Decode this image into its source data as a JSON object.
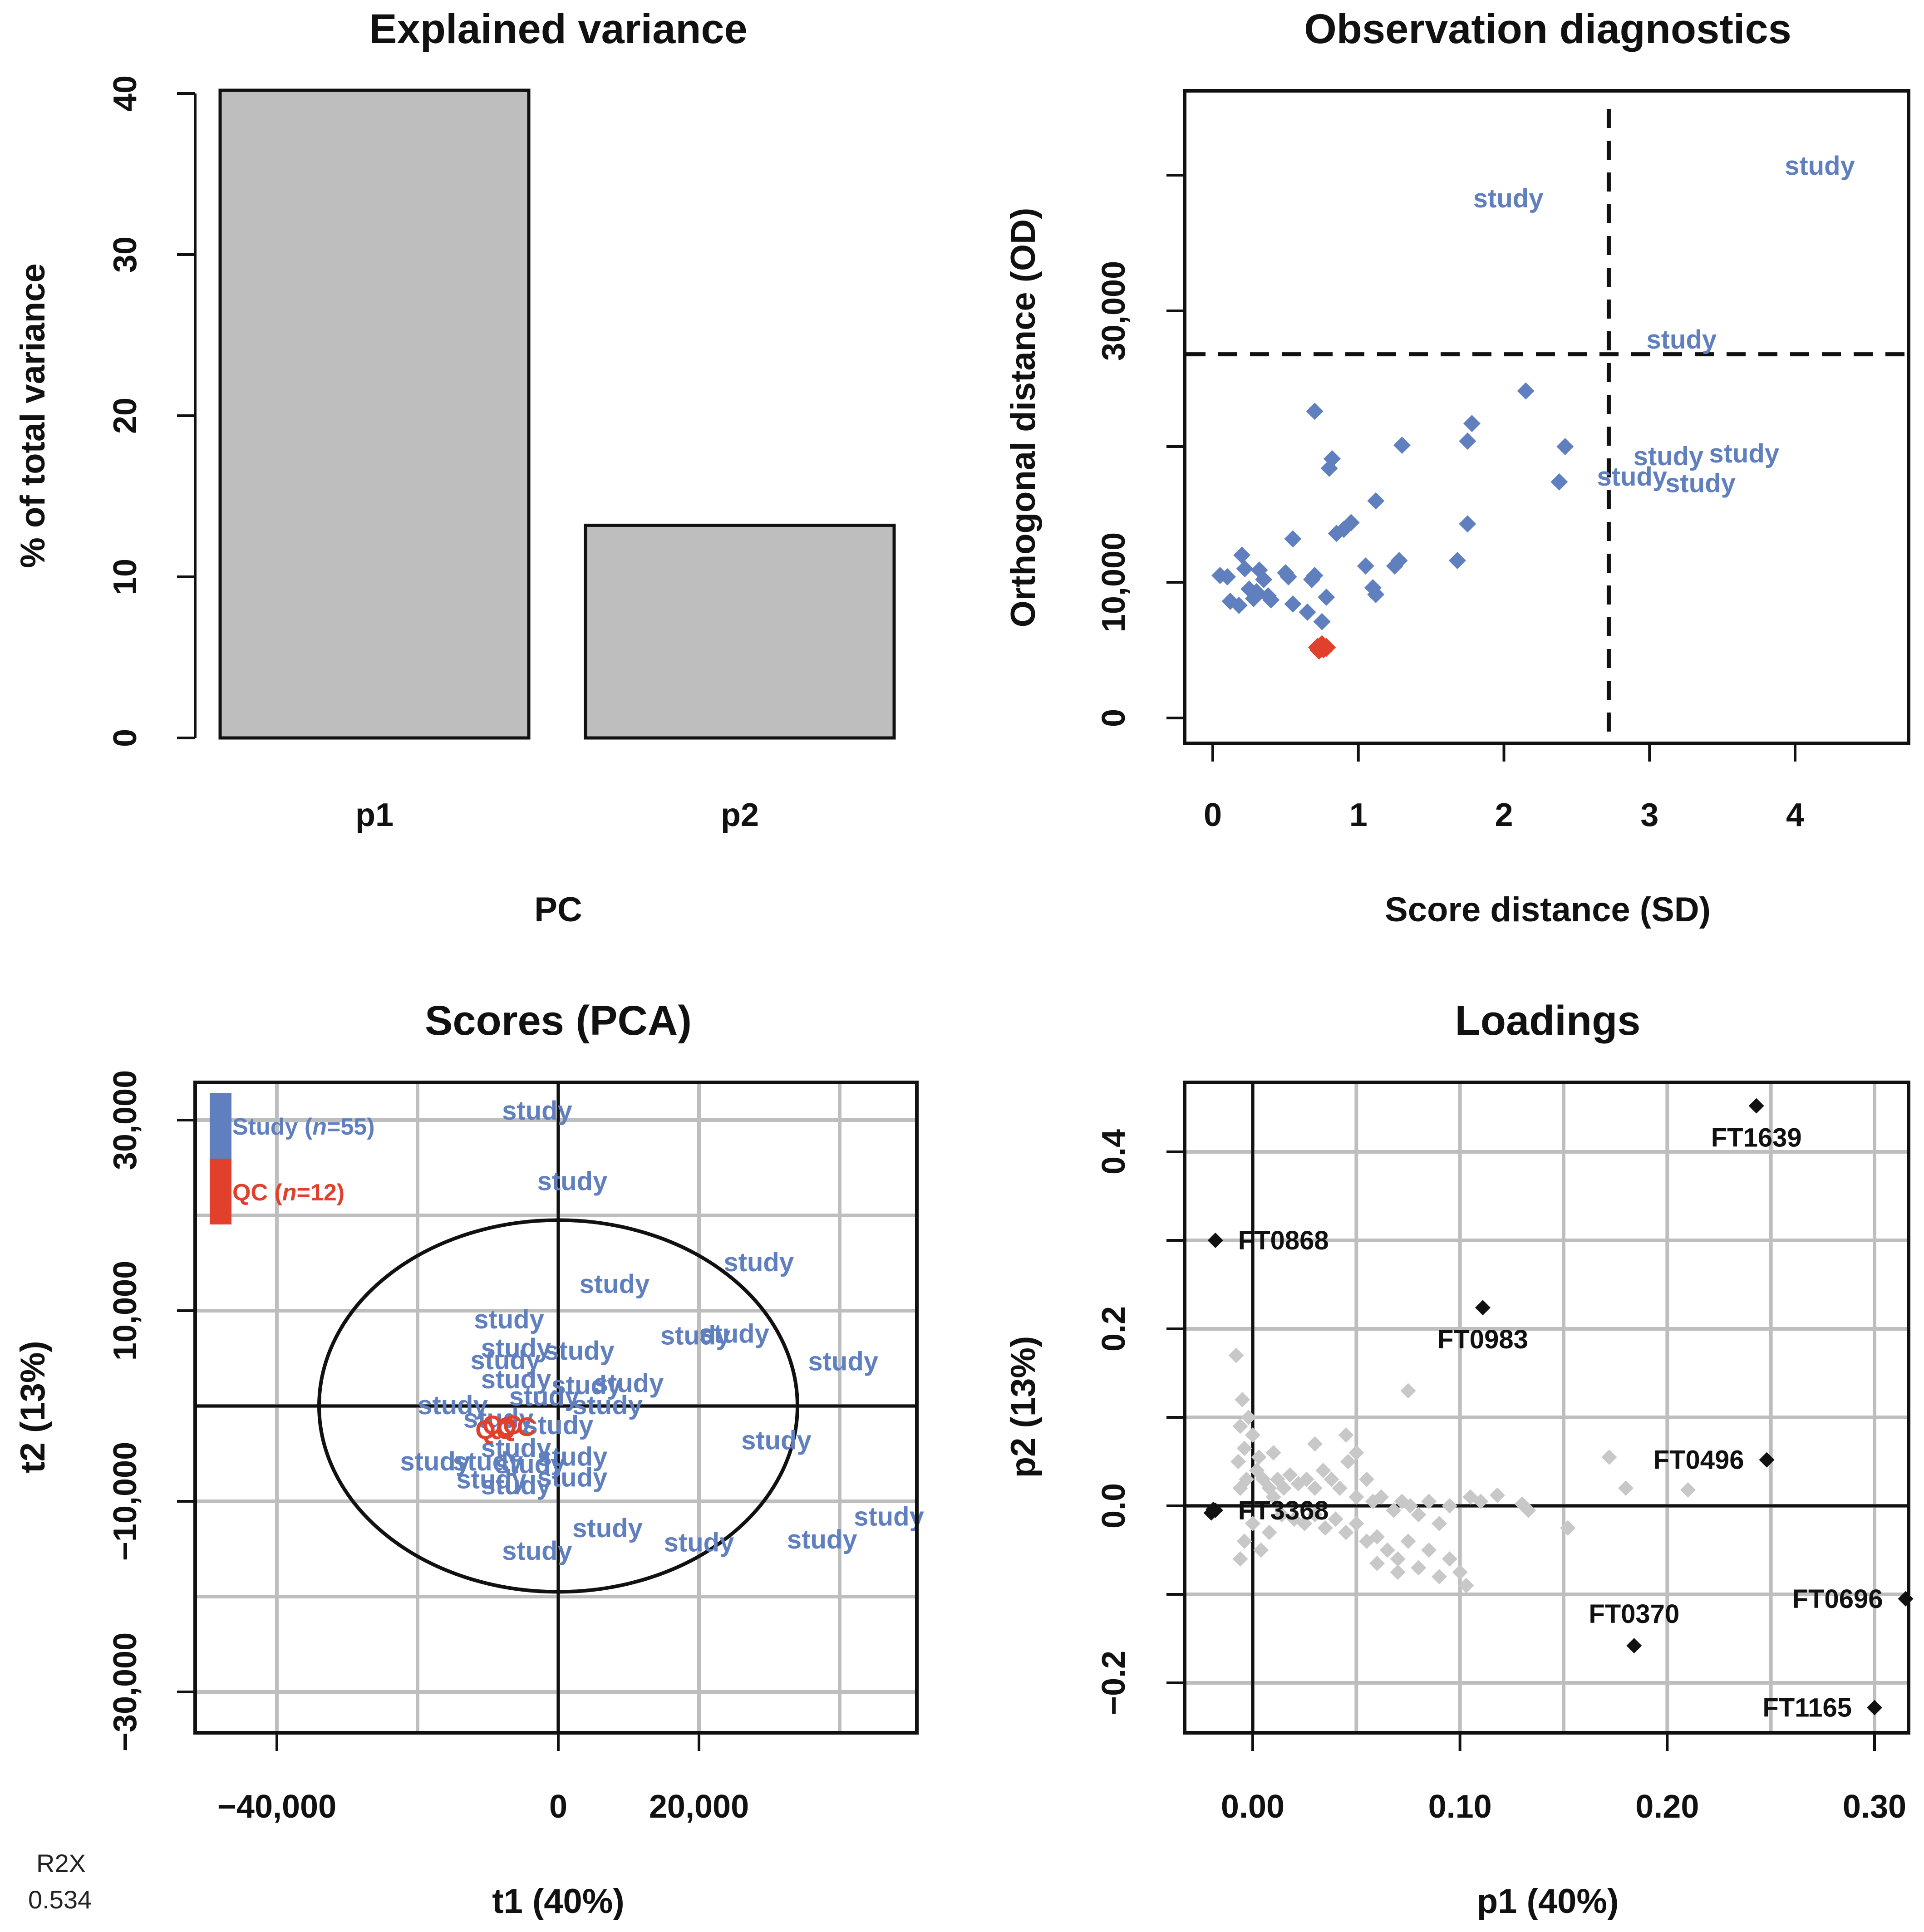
{
  "colors": {
    "study": "#5f7fbf",
    "qc": "#e0402c",
    "bar": "#bebebe",
    "grid": "#bebebe",
    "load_gray": "#c8c8c8",
    "load_black": "#111111"
  },
  "r2x": {
    "label": "R2X",
    "value": "0.534"
  },
  "chart_data": [
    {
      "type": "bar",
      "title": "Explained variance",
      "xlabel": "PC",
      "ylabel": "% of total variance",
      "categories": [
        "p1",
        "p2"
      ],
      "values": [
        40.2,
        13.2
      ],
      "ylim": [
        0,
        40
      ],
      "yticks": [
        0,
        10,
        20,
        30,
        40
      ]
    },
    {
      "type": "scatter",
      "title": "Observation diagnostics",
      "xlabel": "Score distance (SD)",
      "ylabel": "Orthogonal distance (OD)",
      "xlim": [
        -0.2,
        4.8
      ],
      "ylim": [
        -1800,
        46000
      ],
      "xticks": [
        0,
        1,
        2,
        3,
        4
      ],
      "yticks": [
        0,
        10000,
        30000
      ],
      "ytick_labels": [
        "0",
        "10,000",
        "30,000"
      ],
      "grid": false,
      "thresholds": {
        "sd": 2.72,
        "od": 26800
      },
      "study_points": [
        [
          0.05,
          10500
        ],
        [
          0.1,
          10400
        ],
        [
          0.12,
          8600
        ],
        [
          0.18,
          8300
        ],
        [
          0.2,
          12000
        ],
        [
          0.22,
          11000
        ],
        [
          0.25,
          9500
        ],
        [
          0.28,
          8800
        ],
        [
          0.3,
          9300
        ],
        [
          0.32,
          10900
        ],
        [
          0.35,
          10200
        ],
        [
          0.38,
          9000
        ],
        [
          0.4,
          8700
        ],
        [
          0.5,
          10700
        ],
        [
          0.52,
          10400
        ],
        [
          0.55,
          8400
        ],
        [
          0.55,
          13200
        ],
        [
          0.65,
          7800
        ],
        [
          0.68,
          10200
        ],
        [
          0.7,
          10500
        ],
        [
          0.7,
          22600
        ],
        [
          0.75,
          7100
        ],
        [
          0.78,
          8900
        ],
        [
          0.8,
          18400
        ],
        [
          0.82,
          19100
        ],
        [
          0.85,
          13600
        ],
        [
          0.9,
          13900
        ],
        [
          0.95,
          14400
        ],
        [
          1.05,
          11200
        ],
        [
          1.1,
          9600
        ],
        [
          1.12,
          9100
        ],
        [
          1.12,
          16000
        ],
        [
          1.25,
          11200
        ],
        [
          1.28,
          11600
        ],
        [
          1.3,
          20100
        ],
        [
          1.68,
          11600
        ],
        [
          1.75,
          14300
        ],
        [
          1.75,
          20400
        ],
        [
          1.78,
          21700
        ],
        [
          2.15,
          24100
        ],
        [
          2.38,
          17400
        ],
        [
          2.42,
          20000
        ]
      ],
      "qc_points": [
        [
          0.72,
          5200
        ],
        [
          0.74,
          5300
        ],
        [
          0.76,
          5100
        ],
        [
          0.78,
          5200
        ],
        [
          0.73,
          5000
        ],
        [
          0.75,
          5400
        ]
      ],
      "study_text_labels": [
        {
          "text": "study",
          "x": 2.03,
          "y": 38300
        },
        {
          "text": "study",
          "x": 4.17,
          "y": 40700
        },
        {
          "text": "study",
          "x": 3.22,
          "y": 27900
        },
        {
          "text": "study",
          "x": 3.13,
          "y": 19300
        },
        {
          "text": "study",
          "x": 3.65,
          "y": 19500
        },
        {
          "text": "study",
          "x": 2.88,
          "y": 17800
        },
        {
          "text": "study",
          "x": 3.35,
          "y": 17300
        }
      ]
    },
    {
      "type": "scatter",
      "title": "Scores (PCA)",
      "xlabel": "t1 (40%)",
      "ylabel": "t2 (13%)",
      "xlim": [
        -51000,
        51000
      ],
      "ylim": [
        -35000,
        34000
      ],
      "xticks": [
        -40000,
        0,
        20000
      ],
      "xtick_labels": [
        "−40,000",
        "0",
        "20,000"
      ],
      "yticks": [
        -30000,
        -10000,
        10000,
        30000
      ],
      "ytick_labels": [
        "−30,000",
        "−10,000",
        "10,000",
        "30,000"
      ],
      "grid_x": [
        -40000,
        -20000,
        0,
        20000,
        40000
      ],
      "grid_y": [
        -30000,
        -20000,
        -10000,
        0,
        10000,
        20000,
        30000
      ],
      "ellipse": {
        "rx": 34000,
        "ry": 19500
      },
      "legend": [
        {
          "label": "Study (n=55)",
          "series": "study"
        },
        {
          "label": "QC (n=12)",
          "series": "qc"
        }
      ],
      "study_text_labels": [
        {
          "text": "study",
          "x": -3000,
          "y": 31000
        },
        {
          "text": "study",
          "x": 2000,
          "y": 23600
        },
        {
          "text": "study",
          "x": 8000,
          "y": 12800
        },
        {
          "text": "study",
          "x": 28500,
          "y": 15100
        },
        {
          "text": "study",
          "x": -7000,
          "y": 9100
        },
        {
          "text": "study",
          "x": 19500,
          "y": 7400
        },
        {
          "text": "study",
          "x": 25000,
          "y": 7600
        },
        {
          "text": "study",
          "x": 40500,
          "y": 4700
        },
        {
          "text": "study",
          "x": -6000,
          "y": 6100
        },
        {
          "text": "study",
          "x": 3000,
          "y": 5800
        },
        {
          "text": "study",
          "x": -7500,
          "y": 4800
        },
        {
          "text": "study",
          "x": 10000,
          "y": 2400
        },
        {
          "text": "study",
          "x": -6000,
          "y": 2800
        },
        {
          "text": "study",
          "x": 4000,
          "y": 2200
        },
        {
          "text": "study",
          "x": -2000,
          "y": 1000
        },
        {
          "text": "study",
          "x": 7000,
          "y": 100
        },
        {
          "text": "study",
          "x": -15000,
          "y": 100
        },
        {
          "text": "study",
          "x": -8500,
          "y": -1300
        },
        {
          "text": "study",
          "x": 0,
          "y": -2000
        },
        {
          "text": "study",
          "x": 31000,
          "y": -3600
        },
        {
          "text": "study",
          "x": -6000,
          "y": -4400
        },
        {
          "text": "study",
          "x": 2000,
          "y": -5300
        },
        {
          "text": "study",
          "x": -17500,
          "y": -5800
        },
        {
          "text": "study",
          "x": -10000,
          "y": -5800
        },
        {
          "text": "study",
          "x": -4000,
          "y": -6100
        },
        {
          "text": "study",
          "x": 2000,
          "y": -7500
        },
        {
          "text": "study",
          "x": -9500,
          "y": -7700
        },
        {
          "text": "study",
          "x": -6000,
          "y": -8300
        },
        {
          "text": "study",
          "x": 47000,
          "y": -11600
        },
        {
          "text": "study",
          "x": 7000,
          "y": -12800
        },
        {
          "text": "study",
          "x": 20000,
          "y": -14300
        },
        {
          "text": "study",
          "x": 37500,
          "y": -14000
        },
        {
          "text": "study",
          "x": -3000,
          "y": -15200
        }
      ],
      "qc_text_labels": [
        {
          "text": "QC",
          "x": -8000,
          "y": -2000
        },
        {
          "text": "QC",
          "x": -6000,
          "y": -2200
        },
        {
          "text": "QC",
          "x": -9000,
          "y": -2500
        }
      ]
    },
    {
      "type": "scatter",
      "title": "Loadings",
      "xlabel": "p1 (40%)",
      "ylabel": "p2 (13%)",
      "xlim": [
        -0.033,
        0.33
      ],
      "ylim": [
        -0.255,
        0.48
      ],
      "xticks": [
        0.0,
        0.1,
        0.2,
        0.3
      ],
      "xtick_labels": [
        "0.00",
        "0.10",
        "0.20",
        "0.30"
      ],
      "yticks": [
        -0.2,
        0.0,
        0.2,
        0.4
      ],
      "ytick_labels": [
        "−0.2",
        "0.0",
        "0.2",
        "0.4"
      ],
      "grid_x": [
        0.0,
        0.05,
        0.1,
        0.15,
        0.2,
        0.25,
        0.3
      ],
      "grid_y": [
        -0.2,
        -0.1,
        0.0,
        0.1,
        0.2,
        0.3,
        0.4
      ],
      "labeled_points": [
        {
          "name": "FT1639",
          "x": 0.243,
          "y": 0.452,
          "label_pos": "below"
        },
        {
          "name": "FT0868",
          "x": -0.018,
          "y": 0.3,
          "label_pos": "right"
        },
        {
          "name": "FT0983",
          "x": 0.111,
          "y": 0.224,
          "label_pos": "below"
        },
        {
          "name": "FT0496",
          "x": 0.248,
          "y": 0.052,
          "label_pos": "left"
        },
        {
          "name": "FT3368",
          "x": -0.018,
          "y": -0.005,
          "label_pos": "right"
        },
        {
          "name": "FT0696",
          "x": 0.315,
          "y": -0.105,
          "label_pos": "left"
        },
        {
          "name": "FT0370",
          "x": 0.184,
          "y": -0.158,
          "label_pos": "above"
        },
        {
          "name": "FT1165",
          "x": 0.3,
          "y": -0.228,
          "label_pos": "left"
        }
      ],
      "extra_black_points": [
        [
          -0.02,
          -0.008
        ],
        [
          -0.019,
          -0.004
        ]
      ],
      "gray_points": [
        [
          -0.008,
          0.17
        ],
        [
          -0.005,
          0.12
        ],
        [
          -0.002,
          0.1
        ],
        [
          -0.006,
          0.09
        ],
        [
          0.0,
          0.08
        ],
        [
          -0.004,
          0.065
        ],
        [
          0.003,
          0.055
        ],
        [
          -0.007,
          0.05
        ],
        [
          0.002,
          0.04
        ],
        [
          -0.003,
          0.03
        ],
        [
          0.005,
          0.03
        ],
        [
          -0.006,
          0.02
        ],
        [
          0.008,
          0.02
        ],
        [
          0.012,
          0.03
        ],
        [
          0.015,
          0.02
        ],
        [
          0.018,
          0.035
        ],
        [
          0.022,
          0.025
        ],
        [
          0.026,
          0.03
        ],
        [
          0.03,
          0.02
        ],
        [
          0.034,
          0.04
        ],
        [
          0.038,
          0.03
        ],
        [
          0.042,
          0.02
        ],
        [
          0.046,
          0.05
        ],
        [
          0.05,
          0.06
        ],
        [
          0.05,
          0.01
        ],
        [
          0.055,
          0.03
        ],
        [
          0.058,
          0.005
        ],
        [
          0.062,
          0.01
        ],
        [
          0.068,
          -0.005
        ],
        [
          0.072,
          0.005
        ],
        [
          0.076,
          0.0
        ],
        [
          0.08,
          -0.01
        ],
        [
          0.085,
          0.005
        ],
        [
          0.09,
          -0.02
        ],
        [
          0.075,
          0.13
        ],
        [
          0.045,
          0.08
        ],
        [
          0.03,
          0.07
        ],
        [
          0.01,
          0.06
        ],
        [
          0.01,
          0.01
        ],
        [
          0.014,
          -0.01
        ],
        [
          0.02,
          -0.015
        ],
        [
          0.025,
          -0.02
        ],
        [
          0.03,
          -0.01
        ],
        [
          0.035,
          -0.025
        ],
        [
          0.04,
          -0.015
        ],
        [
          0.045,
          -0.03
        ],
        [
          0.05,
          -0.02
        ],
        [
          0.055,
          -0.04
        ],
        [
          0.06,
          -0.035
        ],
        [
          0.065,
          -0.05
        ],
        [
          0.07,
          -0.06
        ],
        [
          0.075,
          -0.04
        ],
        [
          0.08,
          -0.07
        ],
        [
          0.085,
          -0.05
        ],
        [
          0.09,
          -0.08
        ],
        [
          0.095,
          -0.06
        ],
        [
          0.1,
          -0.075
        ],
        [
          0.103,
          -0.09
        ],
        [
          0.07,
          -0.075
        ],
        [
          0.06,
          -0.065
        ],
        [
          0.0,
          -0.02
        ],
        [
          -0.004,
          -0.04
        ],
        [
          -0.006,
          -0.06
        ],
        [
          0.004,
          -0.05
        ],
        [
          0.008,
          -0.03
        ],
        [
          0.118,
          0.012
        ],
        [
          0.13,
          0.002
        ],
        [
          0.133,
          -0.005
        ],
        [
          0.152,
          -0.025
        ],
        [
          0.172,
          0.055
        ],
        [
          0.18,
          0.02
        ],
        [
          0.21,
          0.018
        ],
        [
          0.105,
          0.01
        ],
        [
          0.11,
          0.005
        ],
        [
          0.095,
          0.0
        ]
      ]
    }
  ]
}
